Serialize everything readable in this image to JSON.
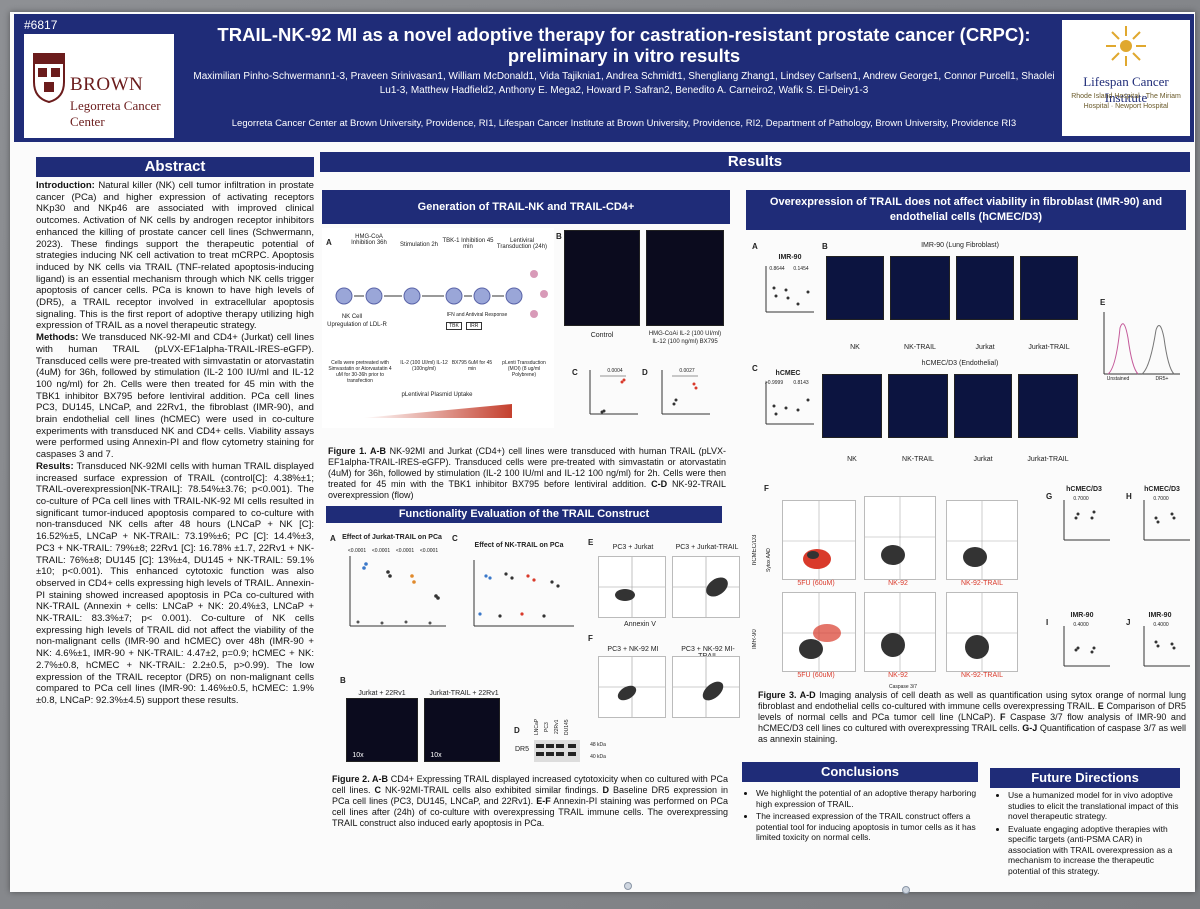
{
  "poster_id": "#6817",
  "header": {
    "title": "TRAIL-NK-92 MI as a novel adoptive therapy for castration-resistant prostate cancer (CRPC): preliminary in vitro results",
    "authors": "Maximilian Pinho-Schwermann1-3, Praveen Srinivasan1, William McDonald1, Vida Tajiknia1, Andrea Schmidt1, Shengliang Zhang1, Lindsey Carlsen1, Andrew George1, Connor Purcell1, Shaolei Lu1-3, Matthew Hadfield2, Anthony E. Mega2, Howard P. Safran2, Benedito A. Carneiro2, Wafik S. El-Deiry1-3",
    "affiliations": "Legorreta Cancer Center at Brown University, Providence, RI1, Lifespan Cancer Institute at Brown University, Providence, RI2, Department of Pathology, Brown University, Providence RI3",
    "left_logo_name": "BROWN",
    "left_logo_sub": "Legorreta Cancer Center",
    "right_logo_name": "Lifespan Cancer Institute",
    "right_logo_sub": "Rhode Island Hospital · The Miriam Hospital · Newport Hospital"
  },
  "abstract": {
    "title": "Abstract",
    "intro_label": "Introduction:",
    "intro": "Natural killer (NK) cell tumor infiltration in prostate cancer (PCa) and higher expression of activating receptors NKp30 and NKp46 are associated with improved clinical outcomes. Activation of NK cells by androgen receptor inhibitors enhanced the killing of prostate cancer cell lines (Schwermann, 2023). These findings support the therapeutic potential of strategies inducing NK cell activation to treat mCRPC. Apoptosis induced by NK cells via TRAIL (TNF-related apoptosis-inducing ligand) is an essential mechanism through which NK cells trigger apoptosis of cancer cells. PCa is known to have high levels of (DR5), a TRAIL receptor involved in extracellular apoptosis signaling. This is the first report of adoptive therapy utilizing high expression of TRAIL as a novel therapeutic strategy.",
    "methods_label": "Methods:",
    "methods": "We transduced NK-92-MI and CD4+ (Jurkat) cell lines with human TRAIL (pLVX-EF1alpha-TRAIL-IRES-eGFP). Transduced cells were pre-treated with simvastatin or atorvastatin (4uM) for 36h, followed by stimulation (IL-2 100 IU/ml and IL-12 100 ng/ml) for 2h. Cells were then treated for 45 min with the TBK1 inhibitor BX795 before lentiviral addition. PCa cell lines PC3, DU145, LNCaP, and 22Rv1, the fibroblast (IMR-90), and brain endothelial cell lines (hCMEC) were used in co-culture experiments with transduced NK and CD4+ cells. Viability assays were performed using Annexin-PI and flow cytometry staining for caspases 3 and 7.",
    "results_label": "Results:",
    "results": "Transduced NK-92MI cells with human TRAIL displayed increased surface expression of TRAIL (control[C]: 4.38%±1; TRAIL-overexpression[NK-TRAIL]: 78.54%±3.76; p<0.001). The co-culture of PCa cell lines with TRAIL-NK-92 MI cells resulted in significant tumor-induced apoptosis compared to co-culture with non-transduced NK cells after 48 hours (LNCaP + NK [C]: 16.52%±5, LNCaP + NK-TRAIL: 73.19%±6; PC [C]: 14.4%±3, PC3 + NK-TRAIL: 79%±8; 22Rv1 [C]: 16.78% ±1.7, 22Rv1 + NK-TRAIL: 76%±8; DU145 [C]: 13%±4, DU145 + NK-TRAIL: 59.1%±10; p<0.001). This enhanced cytotoxic function was also observed in CD4+ cells expressing high levels of TRAIL. Annexin-PI staining showed increased apoptosis in PCa co-cultured with NK-TRAIL (Annexin + cells: LNCaP + NK: 20.4%±3, LNCaP + NK-TRAIL: 83.3%±7; p< 0.001). Co-culture of NK cells expressing high levels of TRAIL did not affect the viability of the non-malignant cells (IMR-90 and hCMEC) over 48h (IMR-90 + NK: 4.6%±1, IMR-90 + NK-TRAIL: 4.47±2, p=0.9; hCMEC + NK: 2.7%±0.8, hCMEC + NK-TRAIL: 2.2±0.5, p>0.99). The low expression of the TRAIL receptor (DR5) on non-malignant cells compared to PCa cell lines (IMR-90: 1.46%±0.5, hCMEC: 1.9%±0.8, LNCaP: 92.3%±4.5) support these results."
  },
  "results": {
    "title": "Results",
    "gen_title": "Generation of TRAIL-NK and TRAIL-CD4+",
    "gen_steps": {
      "s1": "HMG-CoA Inhibition 36h",
      "s2": "Stimulation 2h",
      "s3": "TBK-1 Inhibition 45 min",
      "s4": "Lentiviral Transduction (24h)",
      "nk": "NK Cell",
      "ldlr": "Upregulation of LDL-R",
      "ifn": "IFN and Antiviral Response",
      "tbk": "TBK",
      "irf": "IRR",
      "pre": "Cells were pretreated with Simvastatin or Atorvastatin 4 uM for 30-36h prior to transfection",
      "il": "IL-2 (100 UI/ml) IL-12 (100ng/ml)",
      "bx": "BX795 6uM for 45 min",
      "lenti": "pLenti Transduction (MOI) (8 ug/ml Polybrene)",
      "uptake": "pLentiviral Plasmid Uptake",
      "a_lbl": "A",
      "b_lbl": "B",
      "c_lbl": "C",
      "d_lbl": "D",
      "ctrl": "Control",
      "hmg": "HMG-CoAi IL-2 (100 UI/ml) IL-12 (100 ng/ml) BX795",
      "p1": "0.0004",
      "p2": "0.0027",
      "y1": "% Positive Expression",
      "y2": "MFI x 10^"
    },
    "fig1_caption_label": "Figure 1. A-B",
    "fig1_caption": "NK-92MI and Jurkat (CD4+) cell lines were transduced with human TRAIL (pLVX-EF1alpha-TRAIL-IRES-eGFP). Transduced cells were pre-treated with simvastatin or atorvastatin (4uM) for 36h, followed by stimulation (IL-2 100 IU/ml and IL-12 100 ng/ml) for 2h. Cells were then treated for 45 min with the TBK1 inhibitor BX795 before lentiviral addition.",
    "fig1_caption_cd": "C-D",
    "fig1_caption_end": "NK-92-TRAIL overexpression (flow)",
    "func_title": "Functionality Evaluation of the TRAIL Construct",
    "func": {
      "a_lbl": "A",
      "a_title": "Effect of Jurkat-TRAIL on PCa",
      "a_ps": [
        "<0.0001",
        "<0.0001",
        "<0.0001",
        "<0.0001"
      ],
      "c_lbl": "C",
      "c_title": "Effect of NK-TRAIL on PCa",
      "ylabel": "% Cell Death",
      "e_lbl": "E",
      "e1": "PC3 + Jurkat",
      "e2": "PC3 + Jurkat-TRAIL",
      "f_lbl": "F",
      "f1": "PC3 + NK-92 MI",
      "f2": "PC3 + NK-92 MI-TRAIL",
      "annexin": "Annexin V",
      "b_lbl": "B",
      "b1": "Jurkat + 22Rv1",
      "b2": "Jurkat-TRAIL + 22Rv1",
      "mag": "10x",
      "d_lbl": "D",
      "dr5": "DR5",
      "lanes": [
        "LNCaP",
        "PC3",
        "22Rv1",
        "DU145"
      ],
      "kda1": "48 kDa",
      "kda2": "40 kDa"
    },
    "fig2_caption_label": "Figure 2. A-B",
    "fig2_caption": "CD4+ Expressing TRAIL displayed increased cytotoxicity when co cultured with PCa cell lines.",
    "fig2_c": "C",
    "fig2_c_text": "NK-92MI-TRAIL cells also exhibited similar findings.",
    "fig2_d": "D",
    "fig2_d_text": "Baseline DR5 expression in PCa cell lines (PC3, DU145, LNCaP, and 22Rv1).",
    "fig2_ef": "E-F",
    "fig2_ef_text": "Annexin-PI staining was performed on PCa cell lines after (24h) of co-culture with overexpressing TRAIL immune cells. The overexpressing TRAIL construct also induced early apoptosis in PCa.",
    "over_title": "Overexpression of TRAIL does not affect viability in fibroblast (IMR-90) and endothelial cells (hCMEC/D3)",
    "over": {
      "a_lbl": "A",
      "b_lbl": "B",
      "c_lbl": "C",
      "e_lbl": "E",
      "imr_small": "IMR-90",
      "p_a1": "0.8644",
      "p_a2": "0.1454",
      "hcmec_small": "hCMEC",
      "p_c1": ">0.9999",
      "p_c2": "0.8143",
      "ylabel": "% Cell Death",
      "imr_title": "IMR-90 (Lung Fibroblast)",
      "hcmec_title": "hCMEC/D3 (Endothelial)",
      "cols": [
        "NK",
        "NK-TRAIL",
        "Jurkat",
        "Jurkat-TRAIL"
      ],
      "e_x1": "Unstained",
      "e_x2": "DR5+",
      "f_lbl": "F",
      "flow_ctrl": "5FU (60uM)",
      "flow_nk": "NK-92",
      "flow_trail": "NK-92-TRAIL",
      "hcmec_axis": "hCMEC/D3",
      "imr_axis": "IMR-90",
      "sytox": "Sytox AAD",
      "caspase": "Caspase 3/7",
      "g_lbl": "G",
      "g_title": "hCMEC/D3",
      "g_p": "0.7000",
      "g_y": "% Caspase 3/7",
      "h_lbl": "H",
      "h_title": "hCMEC/D3",
      "h_p": "0.7000",
      "h_y": "% Annexin",
      "i_lbl": "I",
      "i_title": "IMR-90",
      "i_p": "0.4000",
      "j_lbl": "J",
      "j_title": "IMR-90",
      "j_p": "0.4000",
      "nk": "NK",
      "nktrail": "NK-TRAIL"
    },
    "fig3_caption_label": "Figure 3. A-D",
    "fig3_caption": "Imaging analysis of cell death as well as quantification using sytox orange of normal lung fibroblast and endothelial cells co-cultured with immune cells overexpressing TRAIL.",
    "fig3_e": "E",
    "fig3_e_text": "Comparison of DR5 levels of normal cells and PCa tumor cell line (LNCaP).",
    "fig3_f": "F",
    "fig3_f_text": "Caspase 3/7 flow analysis of IMR-90 and hCMEC/D3 cell lines co cultured with overexpressing TRAIL cells.",
    "fig3_gj": "G-J",
    "fig3_gj_text": "Quantification of caspase 3/7 as well as annexin staining."
  },
  "conclusions": {
    "title": "Conclusions",
    "items": [
      "We highlight the potential of an adoptive therapy harboring high expression of TRAIL.",
      "The increased expression of the TRAIL construct offers a potential tool for inducing apoptosis in tumor cells as it has limited toxicity on normal cells."
    ]
  },
  "future": {
    "title": "Future Directions",
    "items": [
      "Use a humanized model for in vivo adoptive studies to elicit the translational impact of this novel therapeutic strategy.",
      "Evaluate engaging adoptive therapies with specific targets (anti-PSMA CAR) in association with TRAIL overexpression as a mechanism to increase the therapeutic potential of this strategy."
    ]
  },
  "colors": {
    "navy": "#1f2c78",
    "brown_red": "#6b1c1c",
    "marker_red": "#d93a2b",
    "micro_bg": "#0b0b1e"
  }
}
